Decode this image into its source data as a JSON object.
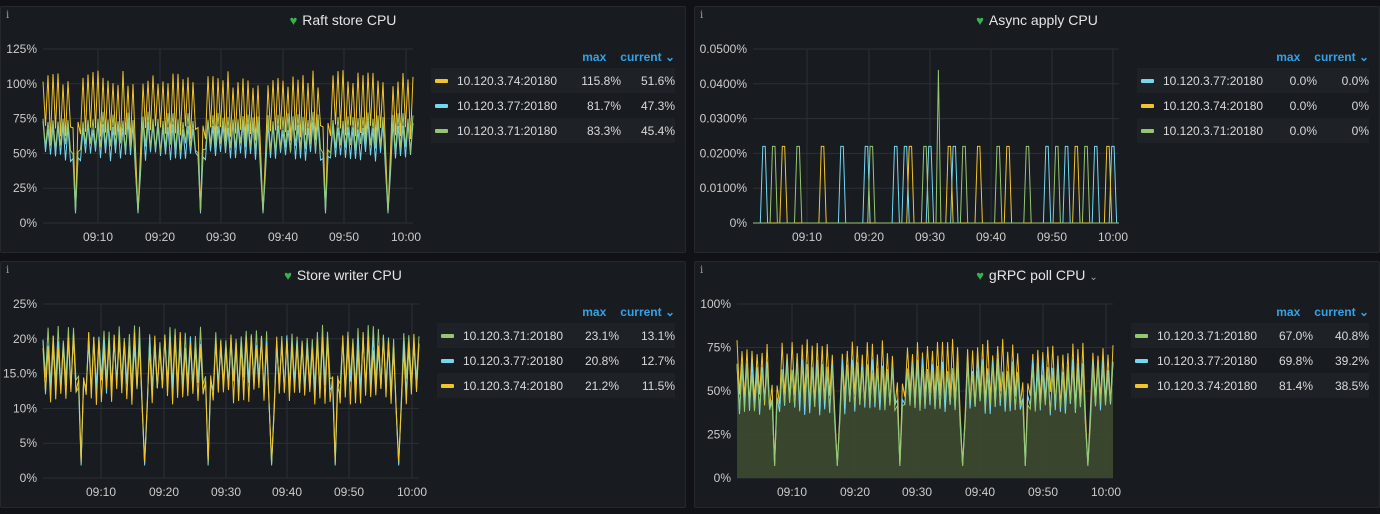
{
  "colors": {
    "yellow": "#f2c42c",
    "cyan": "#73d7f0",
    "green": "#96c770"
  },
  "info_glyph": "i",
  "panels": [
    {
      "title": "Raft store CPU",
      "has_caret": false,
      "legend_max_label": "max",
      "legend_current_label": "current ⌄",
      "legend": [
        {
          "name": "10.120.3.74:20180",
          "max": "115.8%",
          "current": "51.6%",
          "color": "yellow"
        },
        {
          "name": "10.120.3.77:20180",
          "max": "81.7%",
          "current": "47.3%",
          "color": "cyan"
        },
        {
          "name": "10.120.3.71:20180",
          "max": "83.3%",
          "current": "45.4%",
          "color": "green"
        }
      ],
      "y_ticks": [
        "0%",
        "25%",
        "50%",
        "75%",
        "100%",
        "125%"
      ],
      "x_ticks": [
        "09:10",
        "09:20",
        "09:30",
        "09:40",
        "09:50",
        "10:00"
      ]
    },
    {
      "title": "Async apply CPU",
      "has_caret": false,
      "legend_max_label": "max",
      "legend_current_label": "current ⌄",
      "legend": [
        {
          "name": "10.120.3.77:20180",
          "max": "0.0%",
          "current": "0.0%",
          "color": "cyan"
        },
        {
          "name": "10.120.3.74:20180",
          "max": "0.0%",
          "current": "0%",
          "color": "yellow"
        },
        {
          "name": "10.120.3.71:20180",
          "max": "0.0%",
          "current": "0%",
          "color": "green"
        }
      ],
      "y_ticks": [
        "0%",
        "0.0100%",
        "0.0200%",
        "0.0300%",
        "0.0400%",
        "0.0500%"
      ],
      "x_ticks": [
        "09:10",
        "09:20",
        "09:30",
        "09:40",
        "09:50",
        "10:00"
      ]
    },
    {
      "title": "Store writer CPU",
      "has_caret": false,
      "legend_max_label": "max",
      "legend_current_label": "current ⌄",
      "legend": [
        {
          "name": "10.120.3.71:20180",
          "max": "23.1%",
          "current": "13.1%",
          "color": "green"
        },
        {
          "name": "10.120.3.77:20180",
          "max": "20.8%",
          "current": "12.7%",
          "color": "cyan"
        },
        {
          "name": "10.120.3.74:20180",
          "max": "21.2%",
          "current": "11.5%",
          "color": "yellow"
        }
      ],
      "y_ticks": [
        "0%",
        "5%",
        "10%",
        "15.0%",
        "20%",
        "25%"
      ],
      "x_ticks": [
        "09:10",
        "09:20",
        "09:30",
        "09:40",
        "09:50",
        "10:00"
      ]
    },
    {
      "title": "gRPC poll CPU",
      "has_caret": true,
      "caret_glyph": "⌄",
      "legend_max_label": "max",
      "legend_current_label": "current ⌄",
      "legend": [
        {
          "name": "10.120.3.71:20180",
          "max": "67.0%",
          "current": "40.8%",
          "color": "green"
        },
        {
          "name": "10.120.3.77:20180",
          "max": "69.8%",
          "current": "39.2%",
          "color": "cyan"
        },
        {
          "name": "10.120.3.74:20180",
          "max": "81.4%",
          "current": "38.5%",
          "color": "yellow"
        }
      ],
      "y_ticks": [
        "0%",
        "25%",
        "50%",
        "75%",
        "100%"
      ],
      "x_ticks": [
        "09:10",
        "09:20",
        "09:30",
        "09:40",
        "09:50",
        "10:00"
      ]
    }
  ]
}
